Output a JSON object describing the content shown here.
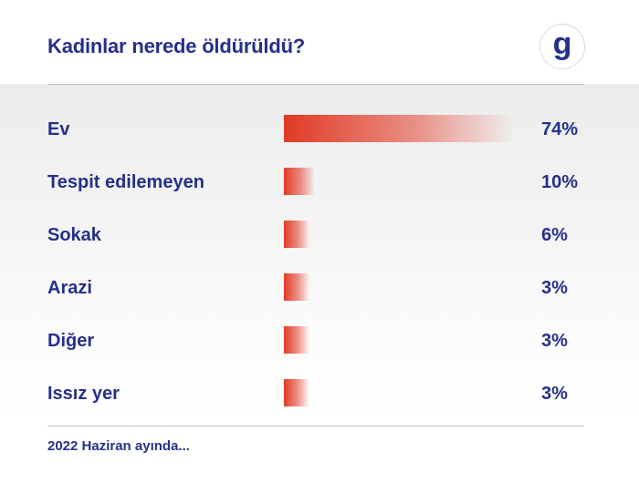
{
  "title": "Kadinlar nerede öldürüldü?",
  "footer": "2022 Haziran ayında...",
  "logo": {
    "icon": "g-letter-logo-icon",
    "text": "g",
    "color": "#24308a"
  },
  "colors": {
    "text": "#24308a",
    "bar": "#e23a26"
  },
  "chart_data": {
    "type": "bar",
    "title": "Kadinlar nerede öldürüldü?",
    "orientation": "horizontal",
    "categories": [
      "Ev",
      "Tespit edilemeyen",
      "Sokak",
      "Arazi",
      "Diğer",
      "Issız yer"
    ],
    "values": [
      74,
      10,
      6,
      3,
      3,
      3
    ],
    "value_labels": [
      "74%",
      "10%",
      "6%",
      "3%",
      "3%",
      "3%"
    ],
    "unit": "%",
    "xlim": [
      0,
      74
    ],
    "grid": false
  }
}
